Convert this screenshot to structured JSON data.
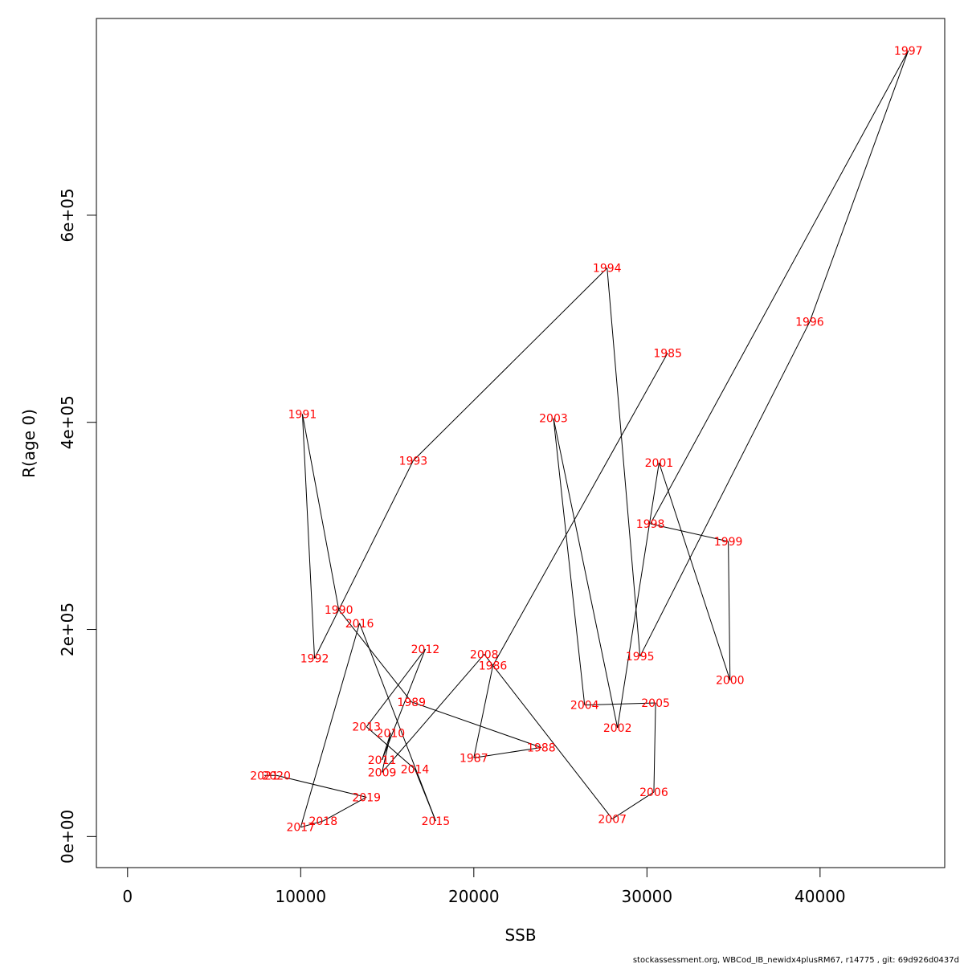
{
  "chart_data": {
    "type": "line",
    "xlabel": "SSB",
    "ylabel": "R(age 0)",
    "xlim": [
      -1800,
      47200
    ],
    "ylim": [
      -30000,
      790000
    ],
    "x_ticks": [
      {
        "value": 0,
        "label": "0"
      },
      {
        "value": 10000,
        "label": "10000"
      },
      {
        "value": 20000,
        "label": "20000"
      },
      {
        "value": 30000,
        "label": "30000"
      },
      {
        "value": 40000,
        "label": "40000"
      }
    ],
    "y_ticks": [
      {
        "value": 0,
        "label": "0e+00"
      },
      {
        "value": 200000,
        "label": "2e+05"
      },
      {
        "value": 400000,
        "label": "4e+05"
      },
      {
        "value": 600000,
        "label": "6e+05"
      }
    ],
    "points": [
      {
        "year": "1985",
        "ssb": 31200,
        "r": 467000
      },
      {
        "year": "1986",
        "ssb": 21100,
        "r": 165000
      },
      {
        "year": "1987",
        "ssb": 20000,
        "r": 76000
      },
      {
        "year": "1988",
        "ssb": 23900,
        "r": 86000
      },
      {
        "year": "1989",
        "ssb": 16400,
        "r": 130000
      },
      {
        "year": "1990",
        "ssb": 12200,
        "r": 219000
      },
      {
        "year": "1991",
        "ssb": 10100,
        "r": 408000
      },
      {
        "year": "1992",
        "ssb": 10800,
        "r": 172000
      },
      {
        "year": "1993",
        "ssb": 16500,
        "r": 363000
      },
      {
        "year": "1994",
        "ssb": 27700,
        "r": 549000
      },
      {
        "year": "1995",
        "ssb": 29600,
        "r": 174000
      },
      {
        "year": "1996",
        "ssb": 39400,
        "r": 497000
      },
      {
        "year": "1997",
        "ssb": 45100,
        "r": 759000
      },
      {
        "year": "1998",
        "ssb": 30200,
        "r": 302000
      },
      {
        "year": "1999",
        "ssb": 34700,
        "r": 285000
      },
      {
        "year": "2000",
        "ssb": 34800,
        "r": 151000
      },
      {
        "year": "2001",
        "ssb": 30700,
        "r": 361000
      },
      {
        "year": "2002",
        "ssb": 28300,
        "r": 105000
      },
      {
        "year": "2003",
        "ssb": 24600,
        "r": 404000
      },
      {
        "year": "2004",
        "ssb": 26400,
        "r": 127000
      },
      {
        "year": "2005",
        "ssb": 30500,
        "r": 129000
      },
      {
        "year": "2006",
        "ssb": 30400,
        "r": 43000
      },
      {
        "year": "2007",
        "ssb": 28000,
        "r": 17000
      },
      {
        "year": "2008",
        "ssb": 20600,
        "r": 176000
      },
      {
        "year": "2009",
        "ssb": 14700,
        "r": 62000
      },
      {
        "year": "2010",
        "ssb": 15200,
        "r": 100000
      },
      {
        "year": "2011",
        "ssb": 14700,
        "r": 74000
      },
      {
        "year": "2012",
        "ssb": 17200,
        "r": 181000
      },
      {
        "year": "2013",
        "ssb": 13800,
        "r": 106000
      },
      {
        "year": "2014",
        "ssb": 16600,
        "r": 65000
      },
      {
        "year": "2015",
        "ssb": 17800,
        "r": 15000
      },
      {
        "year": "2016",
        "ssb": 13400,
        "r": 206000
      },
      {
        "year": "2017",
        "ssb": 10000,
        "r": 9000
      },
      {
        "year": "2018",
        "ssb": 11300,
        "r": 15000
      },
      {
        "year": "2019",
        "ssb": 13800,
        "r": 38000
      },
      {
        "year": "2020",
        "ssb": 8600,
        "r": 59000
      },
      {
        "year": "2021",
        "ssb": 7900,
        "r": 59000
      }
    ]
  },
  "footer": "stockassessment.org, WBCod_IB_newidx4plusRM67, r14775 , git: 69d926d0437d"
}
